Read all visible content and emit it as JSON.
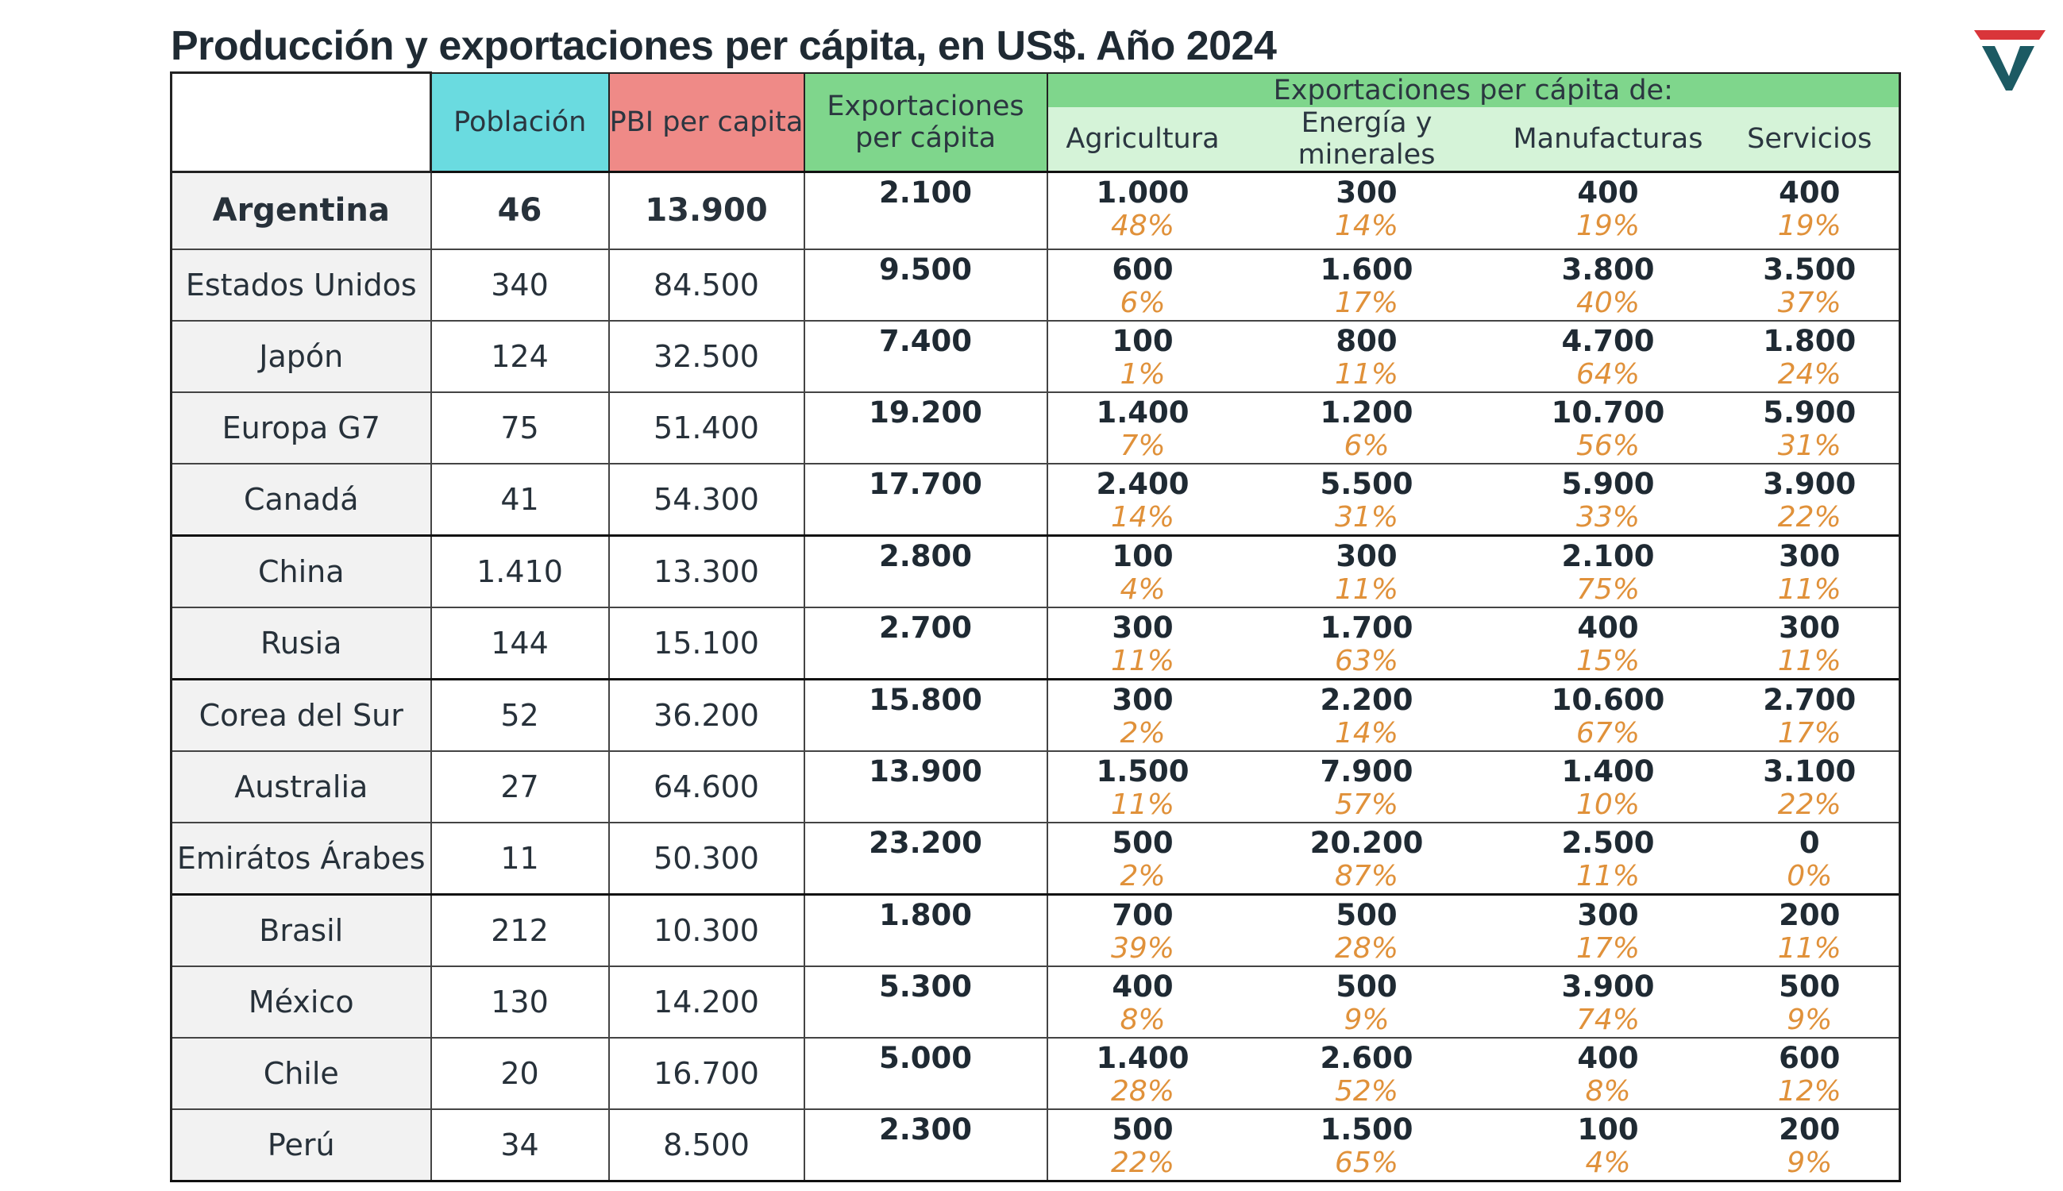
{
  "title": "Producción y exportaciones per cápita, en US$. Año 2024",
  "colors": {
    "poblacion_header": "#6adbe0",
    "pbi_header": "#ef8a87",
    "exportaciones_header": "#7fd68c",
    "subheader": "#d5f3d8",
    "percent_text": "#e0913a",
    "logo_red": "#d9353a",
    "logo_teal": "#1c5a63"
  },
  "logo_icon": "stylized-v-logo",
  "chart_data": {
    "type": "table",
    "title": "Producción y exportaciones per cápita, en US$. Año 2024",
    "headers": {
      "poblacion": "Población",
      "pbi": "PBI per capita",
      "exportaciones": "Exportaciones per cápita",
      "group": "Exportaciones per cápita de:",
      "sectors": [
        "Agricultura",
        "Energía y minerales",
        "Manufacturas",
        "Servicios"
      ]
    },
    "rows": [
      {
        "country": "Argentina",
        "poblacion": "46",
        "pbi": "13.900",
        "exportaciones": "2.100",
        "sectors": [
          {
            "value": "1.000",
            "pct": "48%"
          },
          {
            "value": "300",
            "pct": "14%"
          },
          {
            "value": "400",
            "pct": "19%"
          },
          {
            "value": "400",
            "pct": "19%"
          }
        ]
      },
      {
        "country": "Estados Unidos",
        "poblacion": "340",
        "pbi": "84.500",
        "exportaciones": "9.500",
        "sectors": [
          {
            "value": "600",
            "pct": "6%"
          },
          {
            "value": "1.600",
            "pct": "17%"
          },
          {
            "value": "3.800",
            "pct": "40%"
          },
          {
            "value": "3.500",
            "pct": "37%"
          }
        ]
      },
      {
        "country": "Japón",
        "poblacion": "124",
        "pbi": "32.500",
        "exportaciones": "7.400",
        "sectors": [
          {
            "value": "100",
            "pct": "1%"
          },
          {
            "value": "800",
            "pct": "11%"
          },
          {
            "value": "4.700",
            "pct": "64%"
          },
          {
            "value": "1.800",
            "pct": "24%"
          }
        ]
      },
      {
        "country": "Europa G7",
        "poblacion": "75",
        "pbi": "51.400",
        "exportaciones": "19.200",
        "sectors": [
          {
            "value": "1.400",
            "pct": "7%"
          },
          {
            "value": "1.200",
            "pct": "6%"
          },
          {
            "value": "10.700",
            "pct": "56%"
          },
          {
            "value": "5.900",
            "pct": "31%"
          }
        ]
      },
      {
        "country": "Canadá",
        "poblacion": "41",
        "pbi": "54.300",
        "exportaciones": "17.700",
        "sectors": [
          {
            "value": "2.400",
            "pct": "14%"
          },
          {
            "value": "5.500",
            "pct": "31%"
          },
          {
            "value": "5.900",
            "pct": "33%"
          },
          {
            "value": "3.900",
            "pct": "22%"
          }
        ]
      },
      {
        "country": "China",
        "poblacion": "1.410",
        "pbi": "13.300",
        "exportaciones": "2.800",
        "sectors": [
          {
            "value": "100",
            "pct": "4%"
          },
          {
            "value": "300",
            "pct": "11%"
          },
          {
            "value": "2.100",
            "pct": "75%"
          },
          {
            "value": "300",
            "pct": "11%"
          }
        ]
      },
      {
        "country": "Rusia",
        "poblacion": "144",
        "pbi": "15.100",
        "exportaciones": "2.700",
        "sectors": [
          {
            "value": "300",
            "pct": "11%"
          },
          {
            "value": "1.700",
            "pct": "63%"
          },
          {
            "value": "400",
            "pct": "15%"
          },
          {
            "value": "300",
            "pct": "11%"
          }
        ]
      },
      {
        "country": "Corea del Sur",
        "poblacion": "52",
        "pbi": "36.200",
        "exportaciones": "15.800",
        "sectors": [
          {
            "value": "300",
            "pct": "2%"
          },
          {
            "value": "2.200",
            "pct": "14%"
          },
          {
            "value": "10.600",
            "pct": "67%"
          },
          {
            "value": "2.700",
            "pct": "17%"
          }
        ]
      },
      {
        "country": "Australia",
        "poblacion": "27",
        "pbi": "64.600",
        "exportaciones": "13.900",
        "sectors": [
          {
            "value": "1.500",
            "pct": "11%"
          },
          {
            "value": "7.900",
            "pct": "57%"
          },
          {
            "value": "1.400",
            "pct": "10%"
          },
          {
            "value": "3.100",
            "pct": "22%"
          }
        ]
      },
      {
        "country": "Emirátos Árabes",
        "poblacion": "11",
        "pbi": "50.300",
        "exportaciones": "23.200",
        "sectors": [
          {
            "value": "500",
            "pct": "2%"
          },
          {
            "value": "20.200",
            "pct": "87%"
          },
          {
            "value": "2.500",
            "pct": "11%"
          },
          {
            "value": "0",
            "pct": "0%"
          }
        ]
      },
      {
        "country": "Brasil",
        "poblacion": "212",
        "pbi": "10.300",
        "exportaciones": "1.800",
        "sectors": [
          {
            "value": "700",
            "pct": "39%"
          },
          {
            "value": "500",
            "pct": "28%"
          },
          {
            "value": "300",
            "pct": "17%"
          },
          {
            "value": "200",
            "pct": "11%"
          }
        ]
      },
      {
        "country": "México",
        "poblacion": "130",
        "pbi": "14.200",
        "exportaciones": "5.300",
        "sectors": [
          {
            "value": "400",
            "pct": "8%"
          },
          {
            "value": "500",
            "pct": "9%"
          },
          {
            "value": "3.900",
            "pct": "74%"
          },
          {
            "value": "500",
            "pct": "9%"
          }
        ]
      },
      {
        "country": "Chile",
        "poblacion": "20",
        "pbi": "16.700",
        "exportaciones": "5.000",
        "sectors": [
          {
            "value": "1.400",
            "pct": "28%"
          },
          {
            "value": "2.600",
            "pct": "52%"
          },
          {
            "value": "400",
            "pct": "8%"
          },
          {
            "value": "600",
            "pct": "12%"
          }
        ]
      },
      {
        "country": "Perú",
        "poblacion": "34",
        "pbi": "8.500",
        "exportaciones": "2.300",
        "sectors": [
          {
            "value": "500",
            "pct": "22%"
          },
          {
            "value": "1.500",
            "pct": "65%"
          },
          {
            "value": "100",
            "pct": "4%"
          },
          {
            "value": "200",
            "pct": "9%"
          }
        ]
      }
    ]
  }
}
